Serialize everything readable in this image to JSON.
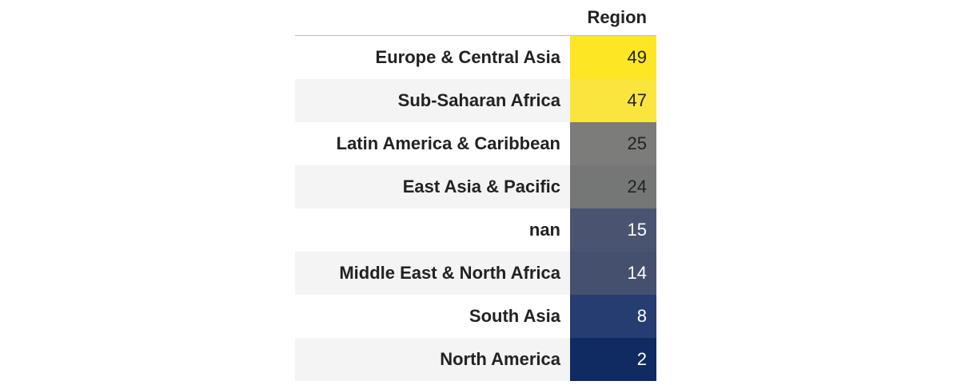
{
  "chart_data": {
    "type": "table",
    "column_header": "Region",
    "rows": [
      {
        "label": "Europe & Central Asia",
        "value": 49,
        "bg": "#fde725",
        "fg": "#222222"
      },
      {
        "label": "Sub-Saharan Africa",
        "value": 47,
        "bg": "#fae53f",
        "fg": "#222222"
      },
      {
        "label": "Latin America & Caribbean",
        "value": 25,
        "bg": "#7c7c7a",
        "fg": "#222222"
      },
      {
        "label": "East Asia & Pacific",
        "value": 24,
        "bg": "#757676",
        "fg": "#222222"
      },
      {
        "label": "nan",
        "value": 15,
        "bg": "#4a5470",
        "fg": "#ffffff"
      },
      {
        "label": "Middle East & North Africa",
        "value": 14,
        "bg": "#45506f",
        "fg": "#ffffff"
      },
      {
        "label": "South Asia",
        "value": 8,
        "bg": "#263d71",
        "fg": "#ffffff"
      },
      {
        "label": "North America",
        "value": 2,
        "bg": "#0f2b62",
        "fg": "#ffffff"
      }
    ]
  }
}
